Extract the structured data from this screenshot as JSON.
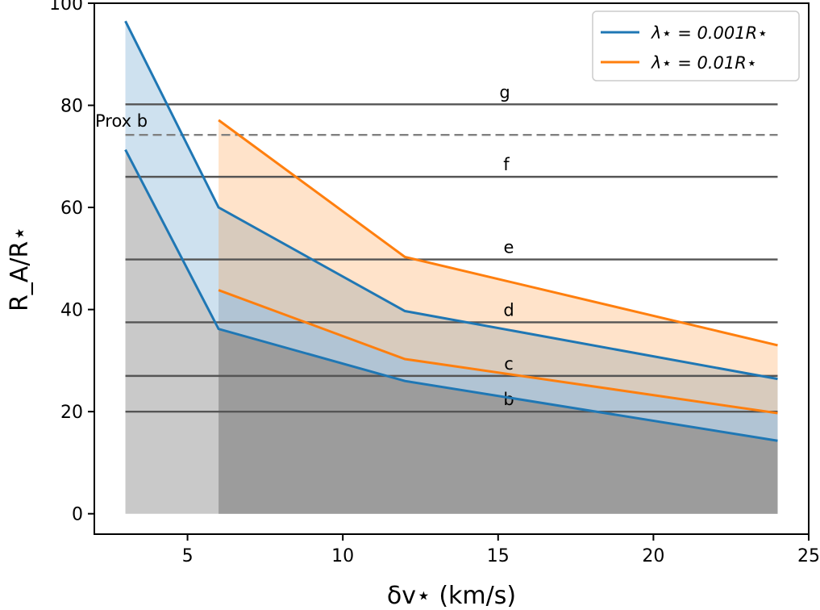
{
  "chart_data": {
    "type": "line",
    "xlabel": "δv⋆  (km/s)",
    "ylabel": "R_A/R⋆",
    "xlim": [
      2,
      25
    ],
    "ylim": [
      -4,
      100
    ],
    "xticks": [
      5,
      10,
      15,
      20,
      25
    ],
    "yticks": [
      0,
      20,
      40,
      60,
      80,
      100
    ],
    "x": [
      3,
      6,
      12,
      24
    ],
    "series": [
      {
        "name": "λ⋆ = 0.001R⋆",
        "color": "#1f77b4",
        "fill": "#c6dbee",
        "x": [
          3,
          6,
          12,
          24
        ],
        "upper": [
          96.5,
          60,
          39.7,
          26.4
        ],
        "lower": [
          71.3,
          36.2,
          26,
          14.3
        ]
      },
      {
        "name": "λ⋆ = 0.01R⋆",
        "color": "#ff7f0e",
        "fill": "#fde3c8",
        "x": [
          6,
          12,
          24
        ],
        "upper": [
          77.1,
          50.3,
          33
        ],
        "lower": [
          43.8,
          30.3,
          19.7
        ]
      }
    ],
    "hlines": [
      {
        "label": "g",
        "y": 80.2,
        "style": "solid"
      },
      {
        "label": "Prox b",
        "y": 74.2,
        "style": "dashed"
      },
      {
        "label": "f",
        "y": 66,
        "style": "solid"
      },
      {
        "label": "e",
        "y": 49.8,
        "style": "solid"
      },
      {
        "label": "d",
        "y": 37.5,
        "style": "solid"
      },
      {
        "label": "c",
        "y": 27,
        "style": "solid"
      },
      {
        "label": "b",
        "y": 20,
        "style": "solid"
      }
    ],
    "legend": {
      "location": "top-right",
      "entries": [
        "λ⋆ = 0.001R⋆",
        "λ⋆ = 0.01R⋆"
      ]
    }
  }
}
